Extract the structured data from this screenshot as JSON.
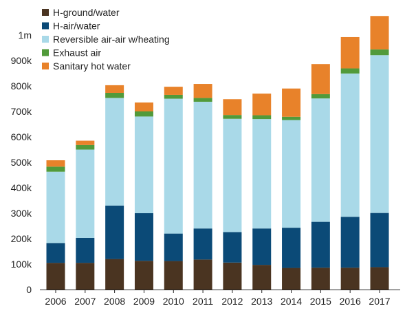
{
  "chart_data": {
    "type": "bar",
    "stacked": true,
    "categories": [
      "2006",
      "2007",
      "2008",
      "2009",
      "2010",
      "2011",
      "2012",
      "2013",
      "2014",
      "2015",
      "2016",
      "2017"
    ],
    "ylim": [
      0,
      1100000
    ],
    "yticks": [
      {
        "value": 0,
        "label": "0"
      },
      {
        "value": 100000,
        "label": "100k"
      },
      {
        "value": 200000,
        "label": "200k"
      },
      {
        "value": 300000,
        "label": "300k"
      },
      {
        "value": 400000,
        "label": "400k"
      },
      {
        "value": 500000,
        "label": "500k"
      },
      {
        "value": 600000,
        "label": "600k"
      },
      {
        "value": 700000,
        "label": "700k"
      },
      {
        "value": 800000,
        "label": "800k"
      },
      {
        "value": 900000,
        "label": "900k"
      },
      {
        "value": 1000000,
        "label": "1m"
      }
    ],
    "legend_position": "top-left",
    "grid": false,
    "series": [
      {
        "name": "H-ground/water",
        "color": "#4a3421",
        "values": [
          105000,
          105000,
          120000,
          113000,
          112000,
          118000,
          106000,
          97000,
          85000,
          86000,
          86000,
          88000
        ]
      },
      {
        "name": "H-air/water",
        "color": "#0b4a77",
        "values": [
          78000,
          98000,
          210000,
          187000,
          108000,
          122000,
          120000,
          143000,
          158000,
          180000,
          200000,
          213000
        ]
      },
      {
        "name": "Reversible air-air w/heating",
        "color": "#a9d9e8",
        "values": [
          280000,
          347000,
          423000,
          380000,
          530000,
          498000,
          445000,
          430000,
          423000,
          485000,
          563000,
          620000
        ]
      },
      {
        "name": "Exhaust air",
        "color": "#519a3a",
        "values": [
          20000,
          18000,
          20000,
          20000,
          15000,
          15000,
          15000,
          15000,
          13000,
          17000,
          20000,
          23000
        ]
      },
      {
        "name": "Sanitary hot water",
        "color": "#e8822a",
        "values": [
          25000,
          17000,
          30000,
          35000,
          32000,
          55000,
          62000,
          85000,
          111000,
          118000,
          123000,
          131000
        ]
      }
    ]
  }
}
